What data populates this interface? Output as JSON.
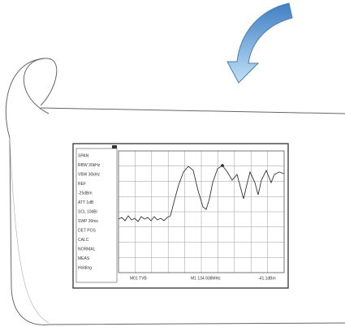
{
  "sidebar": {
    "items": [
      "SPAN",
      "RBW 30kHz",
      "VBW 30kHz",
      "REF",
      "-25dBm",
      "ATT 1dB",
      "SCL 10dB/",
      "SWP 30ms",
      "DET POS",
      "CALC",
      "NORMAL",
      "MEAS",
      "Holding"
    ]
  },
  "footer": {
    "left": "M01 TVB",
    "center": "M1 134.938MHz",
    "right": "-41.1dBm"
  }
}
